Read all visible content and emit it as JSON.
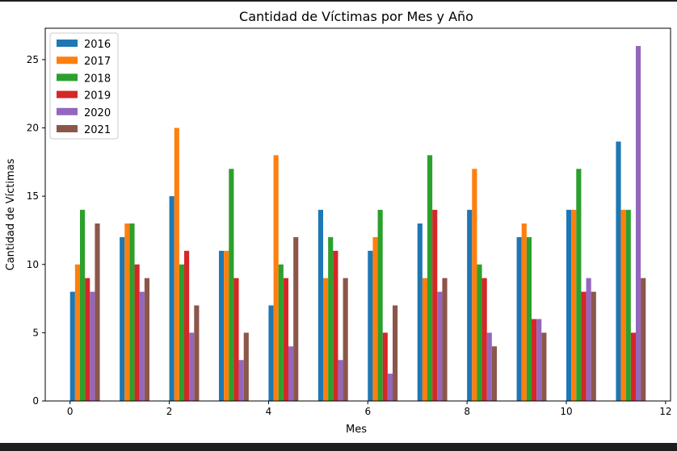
{
  "chart_data": {
    "type": "bar",
    "title": "Cantidad de Víctimas por Mes y Año",
    "xlabel": "Mes",
    "ylabel": "Cantidad de Víctimas",
    "x": [
      0,
      1,
      2,
      3,
      4,
      5,
      6,
      7,
      8,
      9,
      10,
      11
    ],
    "xlim": [
      -0.5,
      12.1
    ],
    "ylim": [
      0,
      27.3
    ],
    "xticks": [
      0,
      2,
      4,
      6,
      8,
      10,
      12
    ],
    "yticks": [
      0,
      5,
      10,
      15,
      20,
      25
    ],
    "bar_width": 0.1,
    "grid": false,
    "legend_position": "top-left",
    "series": [
      {
        "name": "2016",
        "color": "#1f77b4",
        "values": [
          8,
          12,
          15,
          11,
          7,
          14,
          11,
          13,
          14,
          12,
          14,
          19
        ]
      },
      {
        "name": "2017",
        "color": "#ff7f0e",
        "values": [
          10,
          13,
          20,
          11,
          18,
          9,
          12,
          9,
          17,
          13,
          14,
          14
        ]
      },
      {
        "name": "2018",
        "color": "#2ca02c",
        "values": [
          14,
          13,
          10,
          17,
          10,
          12,
          14,
          18,
          10,
          12,
          17,
          14
        ]
      },
      {
        "name": "2019",
        "color": "#d62728",
        "values": [
          9,
          10,
          11,
          9,
          9,
          11,
          5,
          14,
          9,
          6,
          8,
          5
        ]
      },
      {
        "name": "2020",
        "color": "#9467bd",
        "values": [
          8,
          8,
          5,
          3,
          4,
          3,
          2,
          8,
          5,
          6,
          9,
          26
        ]
      },
      {
        "name": "2021",
        "color": "#8c564b",
        "values": [
          13,
          9,
          7,
          5,
          12,
          9,
          7,
          9,
          4,
          5,
          8,
          9
        ]
      }
    ]
  }
}
